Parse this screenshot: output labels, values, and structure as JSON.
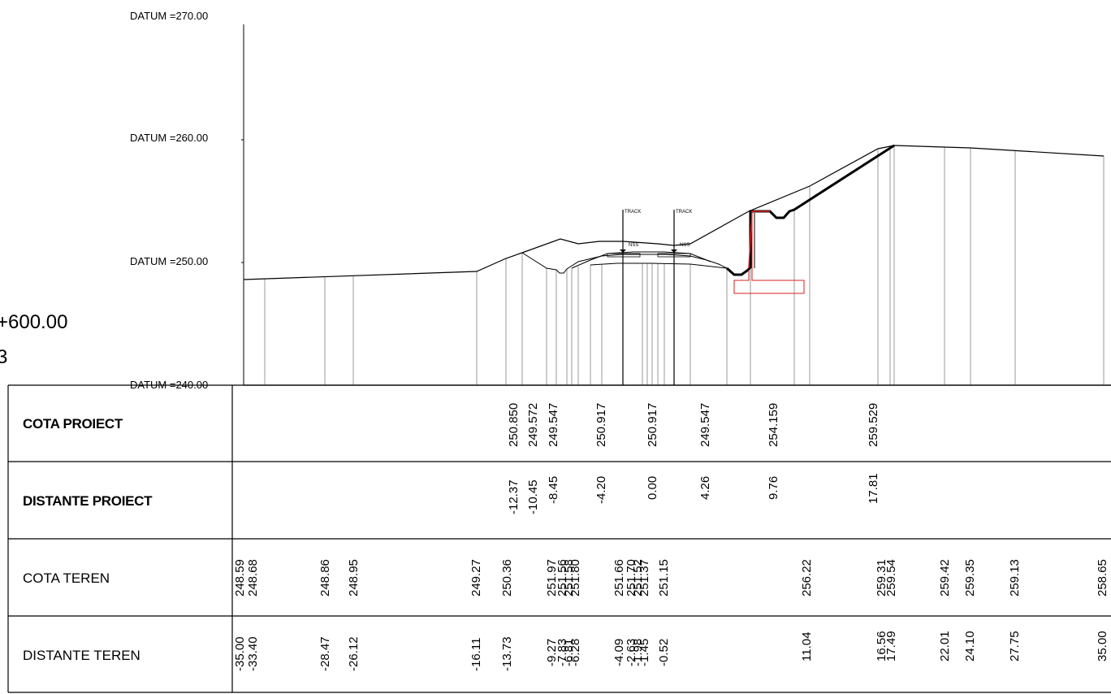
{
  "datum": [
    "DATUM =270.00",
    "DATUM =260.00",
    "DATUM =250.00",
    "DATUM =240.00"
  ],
  "side_labels": {
    "chainage": "+600.00",
    "profile_no": "3"
  },
  "track_labels": [
    "TRACK",
    "TRACK"
  ],
  "nss_labels": [
    "NSS",
    "NSS"
  ],
  "rows": {
    "cota_proiect": {
      "label": "COTA PROIECT",
      "values": [
        "250.850",
        "249.572",
        "249.547",
        "250.917",
        "250.917",
        "249.547",
        "254.159",
        "259.529"
      ]
    },
    "distante_proiect": {
      "label": "DISTANTE PROIECT",
      "values": [
        "-12.37",
        "-10.45",
        "-8.45",
        "-4.20",
        "0.00",
        "4.26",
        "9.76",
        "17.81"
      ]
    },
    "cota_teren": {
      "label": "COTA TEREN",
      "values": [
        "248.59",
        "248.68",
        "248.86",
        "248.95",
        "249.27",
        "250.36",
        "251.97",
        "251.56",
        "251.58",
        "251.80",
        "251.66",
        "251.70",
        "251.52",
        "251.37",
        "251.15",
        "256.22",
        "259.31",
        "259.54",
        "259.42",
        "259.35",
        "259.13",
        "258.65"
      ]
    },
    "distante_teren": {
      "label": "DISTANTE TEREN",
      "values": [
        "-35.00",
        "-33.40",
        "-28.47",
        "-26.12",
        "-16.11",
        "-13.73",
        "-9.27",
        "-7.83",
        "-6.81",
        "-6.28",
        "-4.09",
        "-2.63",
        "-1.98",
        "-1.45",
        "-0.52",
        "11.04",
        "16.56",
        "17.49",
        "22.01",
        "24.10",
        "27.75",
        "35.00"
      ]
    }
  }
}
